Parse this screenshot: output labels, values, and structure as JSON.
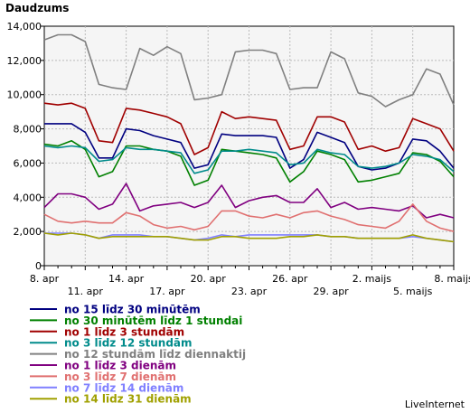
{
  "chart_data": {
    "type": "line",
    "title": "Daudzums",
    "credit": "LiveInternet",
    "ylim": [
      0,
      14000
    ],
    "yticks": [
      "0",
      "2,000",
      "4,000",
      "6,000",
      "8,000",
      "10,000",
      "12,000",
      "14,000"
    ],
    "x_tick_labels": [
      {
        "label": "8. apr",
        "day": 0
      },
      {
        "label": "11. apr",
        "day": 3
      },
      {
        "label": "14. apr",
        "day": 6
      },
      {
        "label": "17. apr",
        "day": 9
      },
      {
        "label": "20. apr",
        "day": 12
      },
      {
        "label": "23. apr",
        "day": 15
      },
      {
        "label": "26. apr",
        "day": 18
      },
      {
        "label": "29. apr",
        "day": 21
      },
      {
        "label": "2. maijs",
        "day": 24
      },
      {
        "label": "5. maijs",
        "day": 27
      },
      {
        "label": "8. maijs",
        "day": 30
      }
    ],
    "series": [
      {
        "name": "no 15 līdz 30 minūtēm",
        "color": "#000080",
        "values": [
          8300,
          8300,
          8300,
          7800,
          6300,
          6300,
          8000,
          7900,
          7600,
          7400,
          7200,
          5700,
          5900,
          7700,
          7600,
          7600,
          7600,
          7500,
          5700,
          6200,
          7800,
          7500,
          7200,
          5800,
          5600,
          5700,
          6000,
          7400,
          7300,
          6700,
          5700
        ]
      },
      {
        "name": "no 30 minūtēm līdz 1 stundai",
        "color": "#008000",
        "values": [
          7100,
          7000,
          7300,
          6800,
          5200,
          5500,
          7000,
          7000,
          6800,
          6700,
          6400,
          4700,
          5000,
          6800,
          6700,
          6600,
          6500,
          6300,
          4900,
          5500,
          6700,
          6500,
          6200,
          4900,
          5000,
          5200,
          5400,
          6600,
          6500,
          6100,
          5200
        ]
      },
      {
        "name": "no 1 līdz 3 stundām",
        "color": "#a00000",
        "values": [
          9500,
          9400,
          9500,
          9200,
          7300,
          7200,
          9200,
          9100,
          8900,
          8700,
          8300,
          6500,
          6900,
          9000,
          8600,
          8700,
          8600,
          8500,
          6800,
          7000,
          8700,
          8700,
          8400,
          6800,
          7000,
          6700,
          6900,
          8600,
          8300,
          8000,
          6700
        ]
      },
      {
        "name": "no 3 līdz 12 stundām",
        "color": "#008b8b",
        "values": [
          7000,
          6900,
          7000,
          6900,
          6100,
          6200,
          6900,
          6800,
          6800,
          6700,
          6600,
          5400,
          5600,
          6700,
          6700,
          6800,
          6700,
          6600,
          5900,
          6000,
          6800,
          6600,
          6500,
          5800,
          5700,
          5800,
          6000,
          6500,
          6400,
          6200,
          5500
        ]
      },
      {
        "name": "no 12 stundām līdz diennaktij",
        "color": "#808080",
        "values": [
          13200,
          13500,
          13500,
          13100,
          10600,
          10400,
          10300,
          12700,
          12300,
          12800,
          12400,
          9700,
          9800,
          10000,
          12500,
          12600,
          12600,
          12400,
          10300,
          10400,
          10400,
          12500,
          12100,
          10100,
          9900,
          9300,
          9700,
          10000,
          11500,
          11200,
          9400
        ]
      },
      {
        "name": "no 1 līdz 3 dienām",
        "color": "#800080",
        "values": [
          3400,
          4200,
          4200,
          4000,
          3300,
          3600,
          4800,
          3200,
          3500,
          3600,
          3700,
          3400,
          3700,
          4700,
          3400,
          3800,
          4000,
          4100,
          3700,
          3700,
          4500,
          3400,
          3700,
          3300,
          3400,
          3300,
          3200,
          3500,
          2800,
          3000,
          2800
        ]
      },
      {
        "name": "no 3 līdz 7 dienām",
        "color": "#e07070",
        "values": [
          3000,
          2600,
          2500,
          2600,
          2500,
          2500,
          3100,
          2900,
          2400,
          2200,
          2300,
          2100,
          2300,
          3200,
          3200,
          2900,
          2800,
          3000,
          2800,
          3100,
          3200,
          2900,
          2700,
          2400,
          2300,
          2200,
          2600,
          3600,
          2600,
          2200,
          2000
        ]
      },
      {
        "name": "no 7 līdz 14 dienām",
        "color": "#8080ff",
        "values": [
          1900,
          1900,
          1900,
          1800,
          1600,
          1800,
          1800,
          1800,
          1700,
          1700,
          1600,
          1500,
          1600,
          1800,
          1700,
          1800,
          1800,
          1800,
          1800,
          1800,
          1800,
          1700,
          1700,
          1600,
          1600,
          1600,
          1600,
          1700,
          1600,
          1500,
          1400
        ]
      },
      {
        "name": "no 14 līdz 31 dienām",
        "color": "#a0a000",
        "values": [
          1900,
          1800,
          1900,
          1800,
          1600,
          1700,
          1700,
          1700,
          1700,
          1700,
          1600,
          1500,
          1500,
          1700,
          1700,
          1600,
          1600,
          1600,
          1700,
          1700,
          1800,
          1700,
          1700,
          1600,
          1600,
          1600,
          1600,
          1800,
          1600,
          1500,
          1400
        ]
      }
    ]
  }
}
